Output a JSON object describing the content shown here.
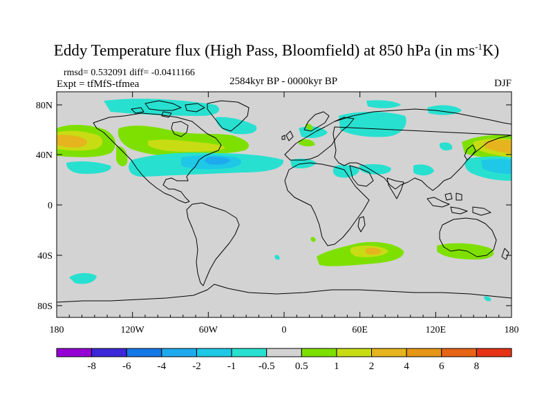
{
  "title": {
    "main": "Eddy Temperature flux (High Pass, Bloomfield) at 850 hPa (in ms",
    "sup": "-1",
    "tail": "K)"
  },
  "stats_text": "rmsd= 0.532091 diff= -0.0411166",
  "experiment_text": "Expt = tfMfS-tfmea",
  "period_text": "2584kyr BP - 0000kyr BP",
  "season_text": "DJF",
  "lat_ticks": [
    "80N",
    "40N",
    "0",
    "40S",
    "80S"
  ],
  "lon_ticks": [
    "180",
    "120W",
    "60W",
    "0",
    "60E",
    "120E",
    "180"
  ],
  "colorbar": {
    "colors": [
      "#9400d3",
      "#3c28d8",
      "#1478e6",
      "#1eaaee",
      "#1ec8e6",
      "#28e0d0",
      "#d3d3d3",
      "#7ee000",
      "#c8dc14",
      "#e6b41e",
      "#e69614",
      "#e66414",
      "#e63214"
    ],
    "labels": [
      "-8",
      "-6",
      "-4",
      "-2",
      "-1",
      "-0.5",
      "0.5",
      "1",
      "2",
      "4",
      "6",
      "8"
    ]
  },
  "colors": {
    "land_sea_background": "#d3d3d3",
    "coastline": "#000000",
    "negative_fill": "#28e0d0",
    "negative_strong": "#1ec8e6",
    "negative_core": "#1eaaee",
    "positive_fill": "#7ee000",
    "positive_mid": "#c8dc14",
    "positive_core": "#e6b41e"
  }
}
